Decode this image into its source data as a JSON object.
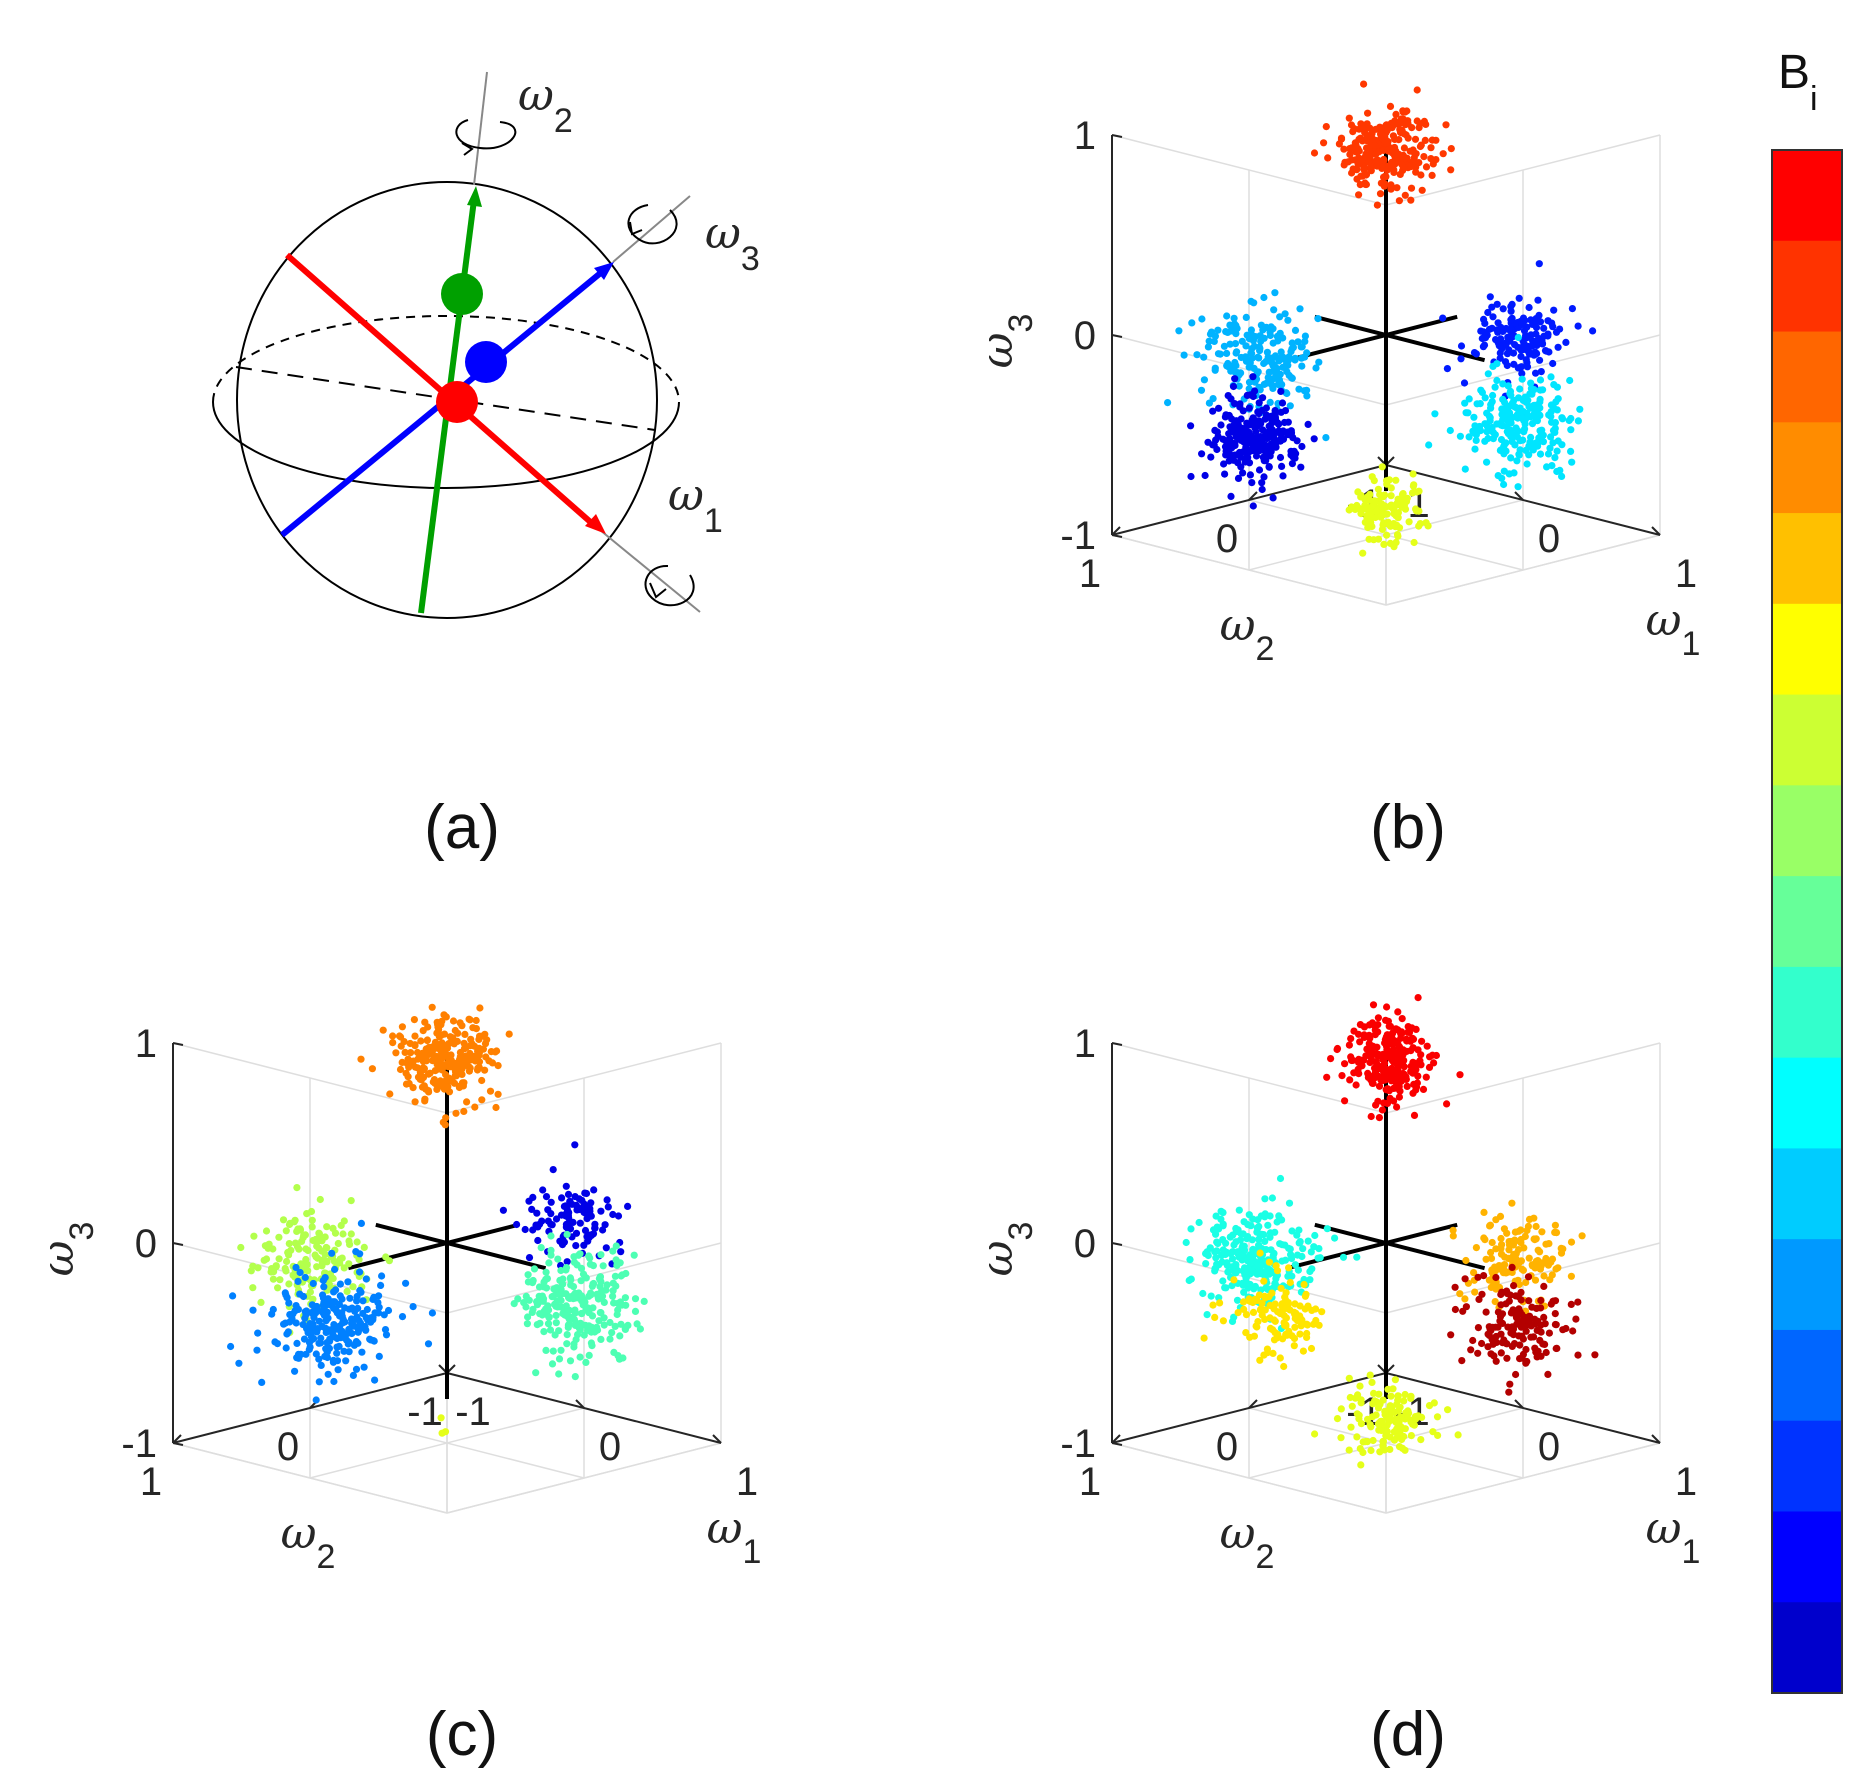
{
  "chart_data": [
    {
      "panel": "(a)",
      "type": "diagram",
      "axes": [
        {
          "name": "ω",
          "sub": "1",
          "color": "#ff0000"
        },
        {
          "name": "ω",
          "sub": "2",
          "color": "#00a000"
        },
        {
          "name": "ω",
          "sub": "3",
          "color": "#0000ff"
        }
      ]
    },
    {
      "panel": "(b)",
      "type": "scatter3d",
      "xlabel": {
        "name": "ω",
        "sub": "1"
      },
      "ylabel": {
        "name": "ω",
        "sub": "2"
      },
      "zlabel": {
        "name": "ω",
        "sub": "3"
      },
      "xlim": [
        -1,
        1
      ],
      "ylim": [
        -1,
        1
      ],
      "zlim": [
        -1,
        1
      ],
      "ticks": [
        "1",
        "0",
        "-1"
      ],
      "grid": true,
      "clusters": [
        {
          "center": [
            0,
            0,
            0.92
          ],
          "color_value": 0.82,
          "count": 260,
          "spread": 0.12
        },
        {
          "center": [
            0,
            0.95,
            0.05
          ],
          "color_value": 0.3,
          "count": 200,
          "spread": 0.14
        },
        {
          "center": [
            0,
            0.95,
            -0.35
          ],
          "color_value": 0.1,
          "count": 240,
          "spread": 0.12
        },
        {
          "center": [
            0.95,
            0,
            0.15
          ],
          "color_value": 0.15,
          "count": 150,
          "spread": 0.12
        },
        {
          "center": [
            0.95,
            0,
            -0.28
          ],
          "color_value": 0.35,
          "count": 240,
          "spread": 0.14
        },
        {
          "center": [
            0,
            0,
            -0.88
          ],
          "color_value": 0.6,
          "count": 120,
          "spread": 0.1
        }
      ]
    },
    {
      "panel": "(c)",
      "type": "scatter3d",
      "xlabel": {
        "name": "ω",
        "sub": "1"
      },
      "ylabel": {
        "name": "ω",
        "sub": "2"
      },
      "zlabel": {
        "name": "ω",
        "sub": "3"
      },
      "xlim": [
        -1,
        1
      ],
      "ylim": [
        -1,
        1
      ],
      "zlim": [
        -1,
        1
      ],
      "ticks": [
        "1",
        "0",
        "-1"
      ],
      "grid": true,
      "clusters": [
        {
          "center": [
            0,
            0,
            0.92
          ],
          "color_value": 0.75,
          "count": 260,
          "spread": 0.12
        },
        {
          "center": [
            0,
            1.0,
            0.1
          ],
          "color_value": 0.55,
          "count": 170,
          "spread": 0.16
        },
        {
          "center": [
            0,
            0.85,
            -0.25
          ],
          "color_value": 0.25,
          "count": 240,
          "spread": 0.16
        },
        {
          "center": [
            0.92,
            0,
            0.28
          ],
          "color_value": 0.1,
          "count": 110,
          "spread": 0.12
        },
        {
          "center": [
            0.92,
            0,
            -0.15
          ],
          "color_value": 0.45,
          "count": 240,
          "spread": 0.16
        },
        {
          "center": [
            0,
            0,
            -0.95
          ],
          "color_value": 0.6,
          "count": 3,
          "spread": 0.05
        }
      ]
    },
    {
      "panel": "(d)",
      "type": "scatter3d",
      "xlabel": {
        "name": "ω",
        "sub": "1"
      },
      "ylabel": {
        "name": "ω",
        "sub": "2"
      },
      "zlabel": {
        "name": "ω",
        "sub": "3"
      },
      "xlim": [
        -1,
        1
      ],
      "ylim": [
        -1,
        1
      ],
      "zlim": [
        -1,
        1
      ],
      "ticks": [
        "1",
        "0",
        "-1"
      ],
      "grid": true,
      "clusters": [
        {
          "center": [
            0,
            0,
            0.92
          ],
          "color_value": 0.88,
          "count": 250,
          "spread": 0.12
        },
        {
          "center": [
            0,
            0.95,
            0.08
          ],
          "color_value": 0.4,
          "count": 260,
          "spread": 0.15
        },
        {
          "center": [
            0,
            0.8,
            -0.22
          ],
          "color_value": 0.65,
          "count": 120,
          "spread": 0.12
        },
        {
          "center": [
            0.95,
            0,
            0.08
          ],
          "color_value": 0.7,
          "count": 140,
          "spread": 0.13
        },
        {
          "center": [
            0.95,
            0,
            -0.25
          ],
          "color_value": 0.95,
          "count": 150,
          "spread": 0.14
        },
        {
          "center": [
            0,
            0,
            -0.9
          ],
          "color_value": 0.6,
          "count": 130,
          "spread": 0.12
        }
      ]
    }
  ],
  "captions": {
    "a": "(a)",
    "b": "(b)",
    "c": "(c)",
    "d": "(d)"
  },
  "colorbar": {
    "title": "B",
    "title_sub": "i",
    "colors": [
      "#ff0000",
      "#ff3300",
      "#ff6600",
      "#ff8c00",
      "#ffc000",
      "#ffff00",
      "#ccff33",
      "#99ff66",
      "#66ff99",
      "#33ffcc",
      "#00ffff",
      "#00ccff",
      "#0099ff",
      "#0066ff",
      "#0033ff",
      "#0000ff",
      "#0000cc"
    ]
  }
}
